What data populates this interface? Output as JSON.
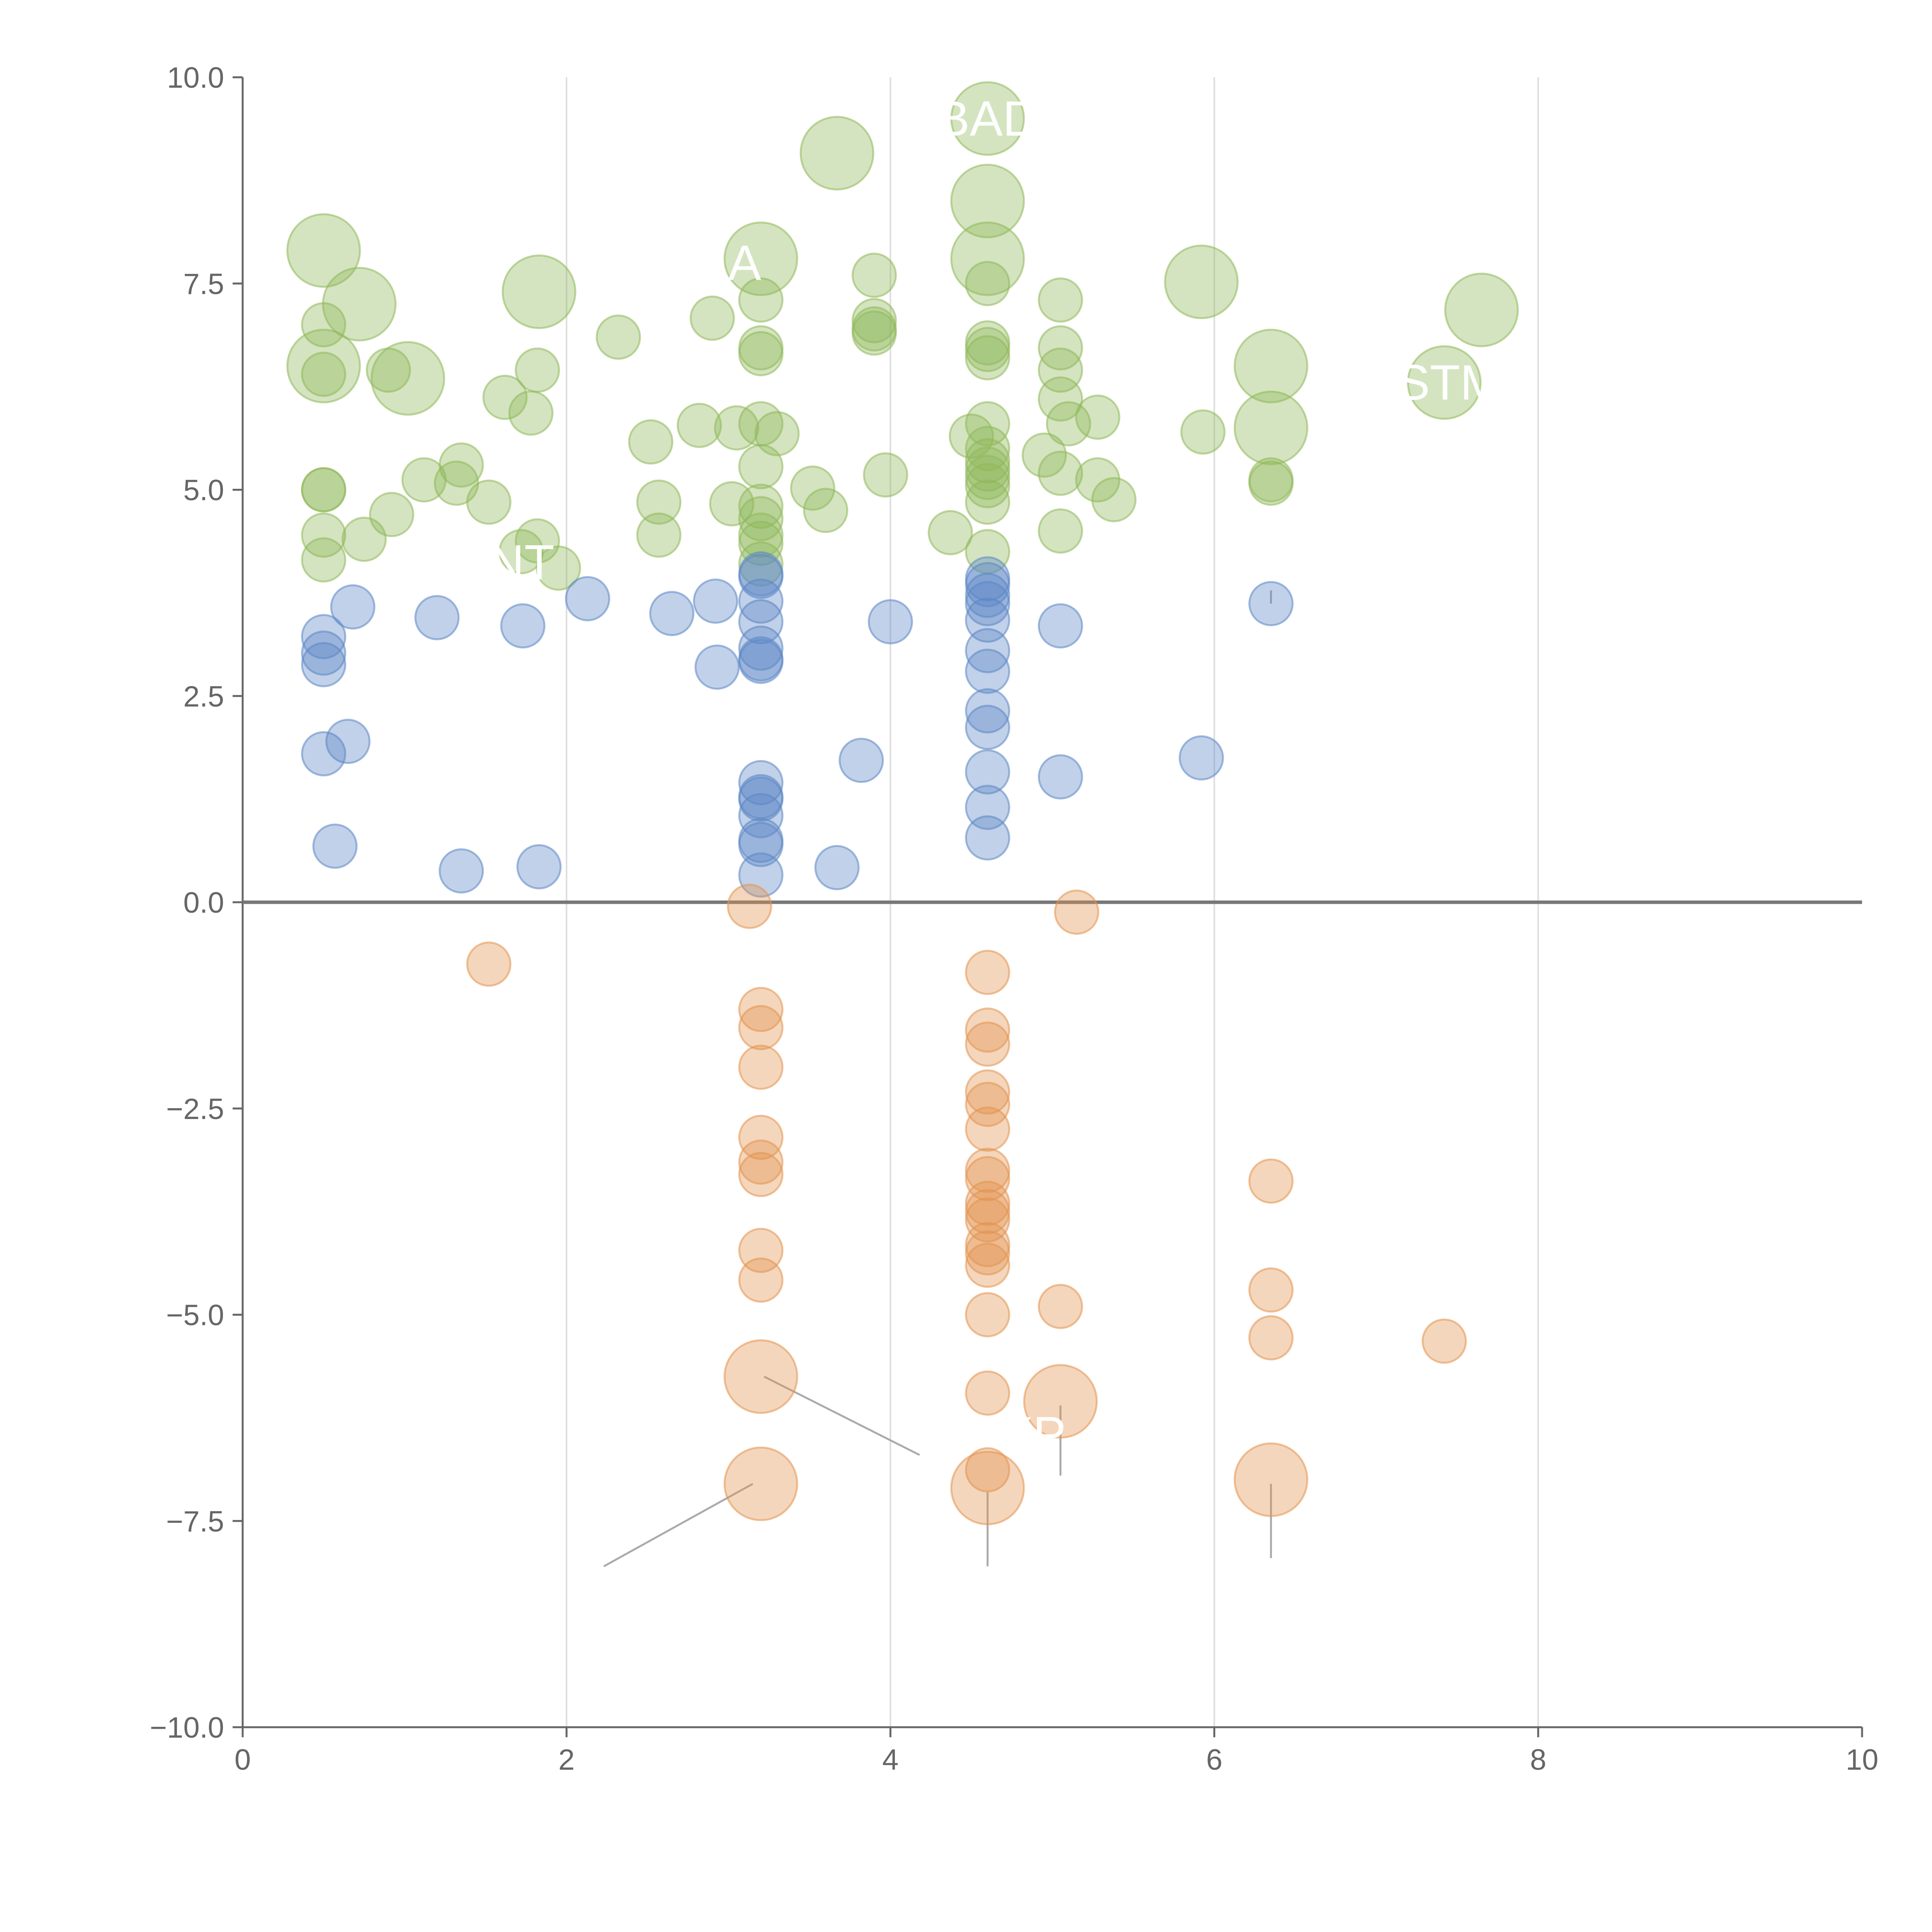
{
  "chart_data": {
    "type": "scatter",
    "title": "",
    "xlabel": "",
    "ylabel": "",
    "xlim": [
      0,
      10
    ],
    "ylim": [
      -10,
      10
    ],
    "grid": "vertical",
    "xticks": [
      "0",
      "2",
      "4",
      "6",
      "8",
      "10"
    ],
    "yticks": [
      "10.0",
      "7.5",
      "5.0",
      "2.5",
      "0.0",
      "−2.5",
      "−5.0",
      "−7.5",
      "−10.0"
    ],
    "colors": {
      "green": "#8fb85a",
      "blue": "#5b86c5",
      "orange": "#e3934e",
      "axis": "#666666",
      "grid": "#dddddd",
      "leader": "#aaaaaa"
    },
    "series": [
      {
        "color_key": "green",
        "size": "small",
        "points": [
          [
            0.5,
            7.0
          ],
          [
            0.5,
            6.4
          ],
          [
            0.5,
            5.0
          ],
          [
            0.5,
            5.0
          ],
          [
            0.5,
            4.45
          ],
          [
            0.5,
            4.15
          ],
          [
            0.75,
            4.4
          ],
          [
            0.92,
            4.7
          ],
          [
            0.9,
            6.45
          ],
          [
            1.12,
            5.12
          ],
          [
            1.32,
            5.08
          ],
          [
            1.35,
            5.3
          ],
          [
            1.52,
            4.85
          ],
          [
            1.62,
            6.12
          ],
          [
            1.78,
            5.93
          ],
          [
            1.82,
            6.45
          ],
          [
            1.72,
            4.25
          ],
          [
            1.82,
            4.38
          ],
          [
            1.95,
            4.05
          ],
          [
            2.32,
            6.85
          ],
          [
            2.52,
            5.58
          ],
          [
            2.57,
            4.85
          ],
          [
            2.57,
            4.45
          ],
          [
            2.82,
            5.78
          ],
          [
            2.9,
            7.08
          ],
          [
            3.02,
            4.83
          ],
          [
            3.05,
            5.75
          ],
          [
            3.2,
            5.8
          ],
          [
            3.2,
            5.28
          ],
          [
            3.2,
            6.65
          ],
          [
            3.2,
            6.72
          ],
          [
            3.2,
            7.3
          ],
          [
            3.3,
            5.68
          ],
          [
            3.2,
            4.8
          ],
          [
            3.2,
            4.65
          ],
          [
            3.2,
            4.35
          ],
          [
            3.2,
            4.1
          ],
          [
            3.2,
            4.45
          ],
          [
            3.52,
            5.02
          ],
          [
            3.6,
            4.75
          ],
          [
            3.9,
            7.05
          ],
          [
            3.9,
            6.95
          ],
          [
            3.9,
            6.9
          ],
          [
            3.9,
            7.6
          ],
          [
            3.97,
            5.18
          ],
          [
            4.37,
            4.48
          ],
          [
            4.5,
            5.65
          ],
          [
            4.6,
            5.8
          ],
          [
            4.6,
            5.5
          ],
          [
            4.6,
            5.35
          ],
          [
            4.6,
            5.25
          ],
          [
            4.6,
            5.15
          ],
          [
            4.6,
            5.05
          ],
          [
            4.6,
            4.85
          ],
          [
            4.6,
            4.25
          ],
          [
            4.6,
            6.6
          ],
          [
            4.6,
            6.7
          ],
          [
            4.6,
            6.78
          ],
          [
            4.6,
            7.5
          ],
          [
            4.95,
            5.42
          ],
          [
            5.05,
            5.2
          ],
          [
            5.05,
            6.1
          ],
          [
            5.05,
            6.45
          ],
          [
            5.05,
            6.72
          ],
          [
            5.05,
            7.3
          ],
          [
            5.05,
            4.5
          ],
          [
            5.1,
            5.8
          ],
          [
            5.28,
            5.88
          ],
          [
            5.28,
            5.12
          ],
          [
            5.38,
            4.88
          ],
          [
            5.93,
            5.7
          ],
          [
            6.35,
            5.08
          ],
          [
            6.35,
            5.12
          ]
        ]
      },
      {
        "color_key": "green",
        "size": "large",
        "points": [
          [
            0.5,
            7.9
          ],
          [
            0.72,
            7.25
          ],
          [
            0.5,
            6.5
          ],
          [
            1.02,
            6.35
          ],
          [
            1.83,
            7.4
          ],
          [
            3.2,
            7.8
          ],
          [
            3.67,
            9.08
          ],
          [
            4.6,
            9.5
          ],
          [
            4.6,
            8.5
          ],
          [
            4.6,
            7.8
          ],
          [
            5.92,
            7.52
          ],
          [
            6.35,
            6.5
          ],
          [
            6.35,
            5.75
          ],
          [
            7.42,
            6.3
          ],
          [
            7.65,
            7.18
          ]
        ]
      },
      {
        "color_key": "blue",
        "size": "small",
        "points": [
          [
            0.5,
            3.22
          ],
          [
            0.5,
            3.02
          ],
          [
            0.5,
            2.88
          ],
          [
            0.5,
            1.8
          ],
          [
            0.65,
            1.95
          ],
          [
            0.68,
            3.58
          ],
          [
            0.57,
            0.68
          ],
          [
            1.2,
            3.45
          ],
          [
            1.35,
            0.38
          ],
          [
            1.73,
            3.35
          ],
          [
            1.83,
            0.43
          ],
          [
            2.13,
            3.68
          ],
          [
            2.65,
            3.5
          ],
          [
            2.92,
            3.65
          ],
          [
            2.93,
            2.85
          ],
          [
            3.2,
            3.95
          ],
          [
            3.2,
            3.98
          ],
          [
            3.2,
            3.65
          ],
          [
            3.2,
            3.4
          ],
          [
            3.2,
            3.08
          ],
          [
            3.2,
            2.95
          ],
          [
            3.2,
            2.92
          ],
          [
            3.2,
            1.45
          ],
          [
            3.2,
            1.28
          ],
          [
            3.2,
            1.25
          ],
          [
            3.2,
            1.05
          ],
          [
            3.2,
            0.75
          ],
          [
            3.2,
            0.7
          ],
          [
            3.2,
            0.33
          ],
          [
            3.67,
            0.42
          ],
          [
            3.82,
            1.72
          ],
          [
            4.0,
            3.4
          ],
          [
            4.6,
            3.92
          ],
          [
            4.6,
            3.85
          ],
          [
            4.6,
            3.72
          ],
          [
            4.6,
            3.62
          ],
          [
            4.6,
            3.42
          ],
          [
            4.6,
            3.05
          ],
          [
            4.6,
            2.8
          ],
          [
            4.6,
            2.32
          ],
          [
            4.6,
            2.12
          ],
          [
            4.6,
            1.58
          ],
          [
            4.6,
            1.15
          ],
          [
            4.6,
            0.78
          ],
          [
            5.05,
            3.35
          ],
          [
            5.05,
            1.52
          ],
          [
            5.92,
            1.75
          ],
          [
            6.35,
            3.62
          ]
        ]
      },
      {
        "color_key": "orange",
        "size": "small",
        "points": [
          [
            1.52,
            -0.75
          ],
          [
            3.13,
            -0.05
          ],
          [
            3.2,
            -1.3
          ],
          [
            3.2,
            -1.52
          ],
          [
            3.2,
            -2.0
          ],
          [
            3.2,
            -2.85
          ],
          [
            3.2,
            -3.15
          ],
          [
            3.2,
            -3.3
          ],
          [
            3.2,
            -4.22
          ],
          [
            3.2,
            -4.58
          ],
          [
            4.6,
            -0.85
          ],
          [
            4.6,
            -1.55
          ],
          [
            4.6,
            -1.72
          ],
          [
            4.6,
            -2.3
          ],
          [
            4.6,
            -2.45
          ],
          [
            4.6,
            -2.75
          ],
          [
            4.6,
            -3.25
          ],
          [
            4.6,
            -3.35
          ],
          [
            4.6,
            -3.65
          ],
          [
            4.6,
            -3.75
          ],
          [
            4.6,
            -3.85
          ],
          [
            4.6,
            -4.15
          ],
          [
            4.6,
            -4.25
          ],
          [
            4.6,
            -4.4
          ],
          [
            4.6,
            -5.0
          ],
          [
            4.6,
            -5.95
          ],
          [
            4.6,
            -6.88
          ],
          [
            5.05,
            -4.9
          ],
          [
            5.15,
            -0.12
          ],
          [
            6.35,
            -3.38
          ],
          [
            6.35,
            -4.7
          ],
          [
            6.35,
            -5.28
          ],
          [
            7.42,
            -5.32
          ]
        ]
      },
      {
        "color_key": "orange",
        "size": "large",
        "points": [
          [
            3.2,
            -5.75
          ],
          [
            3.2,
            -7.05
          ],
          [
            4.6,
            -7.1
          ],
          [
            5.05,
            -6.05
          ],
          [
            6.35,
            -7.0
          ]
        ]
      }
    ],
    "annotations": [
      {
        "text": "BAD",
        "x": 4.6,
        "y": 9.5
      },
      {
        "text": "A",
        "x": 3.1,
        "y": 7.75
      },
      {
        "text": "STM",
        "x": 7.45,
        "y": 6.3
      },
      {
        "text": "BNT",
        "x": 1.62,
        "y": 4.12
      },
      {
        "text": "XP",
        "x": 4.88,
        "y": -6.45
      }
    ],
    "leader_lines": [
      {
        "x1": 3.22,
        "y1": -5.75,
        "x2": 4.18,
        "y2": -6.7
      },
      {
        "x1": 3.15,
        "y1": -7.05,
        "x2": 2.23,
        "y2": -8.05
      },
      {
        "x1": 4.6,
        "y1": -7.15,
        "x2": 4.6,
        "y2": -8.05
      },
      {
        "x1": 5.05,
        "y1": -6.1,
        "x2": 5.05,
        "y2": -6.95
      },
      {
        "x1": 6.35,
        "y1": -7.05,
        "x2": 6.35,
        "y2": -7.95
      },
      {
        "x1": 6.35,
        "y1": 3.78,
        "x2": 6.35,
        "y2": 3.62
      }
    ]
  }
}
